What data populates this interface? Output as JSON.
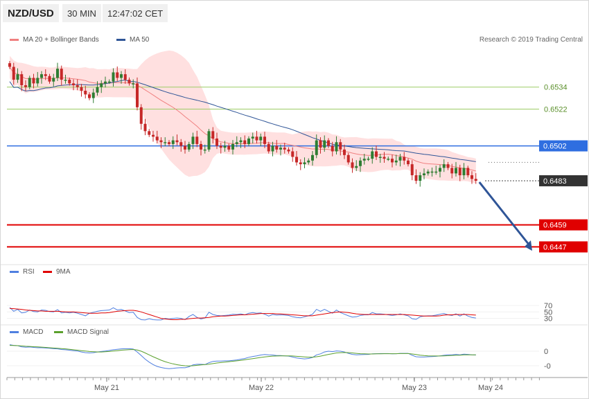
{
  "header": {
    "pair": "NZD/USD",
    "timeframe": "30 MIN",
    "time": "12:47:02 CET"
  },
  "legends": {
    "ma20": "MA 20 + Bollinger Bands",
    "ma50": "MA 50",
    "rsi": "RSI",
    "rsi_ma": "9MA",
    "macd": "MACD",
    "macd_signal": "MACD Signal"
  },
  "credit": "Research © 2019 Trading Central",
  "colors": {
    "ma20": "#f08080",
    "ma50": "#2f5597",
    "bands": "#ffe0e0",
    "bull": "#2e7d32",
    "bear": "#c62828",
    "support": "#e00000",
    "pivot": "#2f6ee0",
    "current": "#333333",
    "green_level": "#9ccc65",
    "arrow": "#2f5597"
  },
  "chart_data": [
    {
      "type": "candlestick",
      "title": "",
      "price_range": [
        6.4435,
        6.4535
      ],
      "x_ticks": [
        "May 21",
        "May 22",
        "May 23",
        "May 24"
      ],
      "levels": [
        {
          "value": 0.6534,
          "label": "0.6534",
          "style": "resistance"
        },
        {
          "value": 0.6522,
          "label": "0.6522",
          "style": "resistance"
        },
        {
          "value": 0.6502,
          "label": "0.6502",
          "style": "pivot"
        },
        {
          "value": 0.6483,
          "label": "0.6483",
          "style": "current"
        },
        {
          "value": 0.6459,
          "label": "0.6459",
          "style": "support"
        },
        {
          "value": 0.6447,
          "label": "0.6447",
          "style": "support"
        }
      ],
      "closes": [
        0.6545,
        0.6538,
        0.6541,
        0.6535,
        0.6534,
        0.6539,
        0.6536,
        0.6539,
        0.6541,
        0.654,
        0.6537,
        0.6539,
        0.6544,
        0.6538,
        0.6538,
        0.6536,
        0.6535,
        0.6534,
        0.6532,
        0.653,
        0.6528,
        0.6531,
        0.6534,
        0.6536,
        0.6537,
        0.6537,
        0.6542,
        0.6539,
        0.6541,
        0.6538,
        0.6536,
        0.6536,
        0.6523,
        0.6514,
        0.651,
        0.6508,
        0.6507,
        0.6505,
        0.6504,
        0.6504,
        0.6503,
        0.6505,
        0.6504,
        0.6502,
        0.65,
        0.6503,
        0.6507,
        0.6503,
        0.65,
        0.65,
        0.651,
        0.6506,
        0.6502,
        0.6501,
        0.6502,
        0.65,
        0.6503,
        0.6504,
        0.6505,
        0.6503,
        0.6506,
        0.6507,
        0.6505,
        0.6507,
        0.6503,
        0.6499,
        0.6502,
        0.65,
        0.6501,
        0.65,
        0.6499,
        0.6496,
        0.6493,
        0.6492,
        0.6493,
        0.6494,
        0.6497,
        0.6505,
        0.6501,
        0.6505,
        0.6502,
        0.6499,
        0.6504,
        0.65,
        0.6497,
        0.6493,
        0.649,
        0.6491,
        0.6494,
        0.6495,
        0.6495,
        0.6499,
        0.6496,
        0.6496,
        0.6495,
        0.6495,
        0.6493,
        0.6494,
        0.6496,
        0.6494,
        0.6492,
        0.6486,
        0.6483,
        0.6486,
        0.6487,
        0.6488,
        0.6488,
        0.6488,
        0.649,
        0.6492,
        0.649,
        0.6487,
        0.649,
        0.6486,
        0.649,
        0.6486,
        0.6484,
        0.6483
      ]
    },
    {
      "type": "line",
      "title": "RSI",
      "y_ticks": [
        30,
        50,
        70
      ],
      "ylim": [
        20,
        80
      ],
      "series": [
        {
          "name": "RSI",
          "values": [
            64,
            52,
            58,
            47,
            49,
            56,
            51,
            50,
            56,
            55,
            51,
            50,
            57,
            47,
            49,
            47,
            49,
            46,
            42,
            38,
            46,
            49,
            52,
            54,
            55,
            56,
            63,
            56,
            58,
            53,
            48,
            49,
            33,
            26,
            25,
            29,
            26,
            25,
            25,
            30,
            28,
            30,
            31,
            30,
            26,
            36,
            42,
            33,
            28,
            31,
            49,
            42,
            39,
            38,
            39,
            40,
            43,
            42,
            44,
            41,
            46,
            48,
            46,
            47,
            43,
            37,
            42,
            40,
            41,
            40,
            39,
            35,
            33,
            32,
            35,
            38,
            43,
            58,
            52,
            58,
            52,
            46,
            56,
            48,
            43,
            38,
            34,
            35,
            39,
            41,
            41,
            48,
            44,
            44,
            43,
            41,
            39,
            41,
            44,
            41,
            38,
            29,
            27,
            35,
            37,
            38,
            38,
            40,
            43,
            45,
            41,
            39,
            44,
            37,
            44,
            37,
            33,
            31
          ]
        },
        {
          "name": "9MA",
          "values": [
            61,
            60,
            59,
            58,
            56,
            55,
            54,
            53,
            53,
            52,
            52,
            52,
            52,
            51,
            50,
            50,
            50,
            49,
            48,
            47,
            46,
            46,
            46,
            47,
            47,
            48,
            50,
            52,
            53,
            54,
            55,
            55,
            53,
            50,
            46,
            42,
            38,
            34,
            30,
            28,
            27,
            26,
            26,
            27,
            27,
            29,
            30,
            31,
            31,
            32,
            33,
            35,
            36,
            37,
            37,
            38,
            39,
            40,
            41,
            41,
            42,
            43,
            44,
            45,
            45,
            45,
            45,
            44,
            44,
            43,
            42,
            41,
            40,
            39,
            38,
            38,
            38,
            40,
            42,
            44,
            46,
            48,
            49,
            50,
            49,
            48,
            46,
            44,
            43,
            42,
            42,
            42,
            42,
            42,
            42,
            42,
            42,
            42,
            42,
            42,
            41,
            40,
            39,
            38,
            37,
            37,
            37,
            37,
            38,
            40,
            41,
            41,
            42,
            42,
            42,
            42,
            41,
            40
          ]
        }
      ]
    },
    {
      "type": "line",
      "title": "MACD",
      "y_ticks": [
        -0.001,
        0
      ],
      "y_tick_labels": [
        "-0",
        "0"
      ],
      "series": [
        {
          "name": "MACD",
          "values": [
            0.00045,
            0.0004,
            0.00038,
            0.0003,
            0.00027,
            0.00029,
            0.00026,
            0.00024,
            0.00024,
            0.00022,
            0.0002,
            0.00017,
            0.00016,
            0.00012,
            0.0001,
            7e-05,
            4e-05,
            1e-05,
            -5e-05,
            -0.0001,
            -0.00012,
            -0.0001,
            -5e-05,
            -2e-05,
            1e-05,
            5e-05,
            0.0001,
            0.00013,
            0.00016,
            0.00017,
            0.00017,
            0.00015,
            -5e-05,
            -0.0003,
            -0.00055,
            -0.00075,
            -0.00092,
            -0.00105,
            -0.00112,
            -0.00117,
            -0.0012,
            -0.00118,
            -0.00115,
            -0.00113,
            -0.00114,
            -0.00107,
            -0.00094,
            -0.0009,
            -0.0009,
            -0.00092,
            -0.00079,
            -0.0007,
            -0.00068,
            -0.00068,
            -0.00066,
            -0.00066,
            -0.00063,
            -0.0006,
            -0.00055,
            -0.0005,
            -0.00042,
            -0.00036,
            -0.00032,
            -0.00026,
            -0.00023,
            -0.00025,
            -0.00026,
            -0.0003,
            -0.0003,
            -0.00032,
            -0.00034,
            -0.0004,
            -0.00046,
            -0.0005,
            -0.00053,
            -0.0005,
            -0.00043,
            -0.00025,
            -0.00018,
            -5e-05,
            0.0,
            -3e-05,
            2e-05,
            0.0,
            -5e-05,
            -0.00015,
            -0.00022,
            -0.00025,
            -0.00024,
            -0.00023,
            -0.00022,
            -0.00018,
            -0.00017,
            -0.00016,
            -0.00016,
            -0.00016,
            -0.00018,
            -0.00017,
            -0.00015,
            -0.00015,
            -0.00015,
            -0.00028,
            -0.00038,
            -0.0004,
            -0.0004,
            -0.00038,
            -0.00037,
            -0.00035,
            -0.00032,
            -0.00028,
            -0.00025,
            -0.00025,
            -0.00022,
            -0.00025,
            -0.0002,
            -0.00022,
            -0.00025,
            -0.00026
          ]
        },
        {
          "name": "MACD Signal",
          "values": [
            0.0004,
            0.00039,
            0.00038,
            0.00036,
            0.00034,
            0.00033,
            0.00031,
            0.0003,
            0.00028,
            0.00026,
            0.00024,
            0.00022,
            0.0002,
            0.00018,
            0.00016,
            0.00013,
            0.0001,
            7e-05,
            4e-05,
            1e-05,
            -2e-05,
            -4e-05,
            -5e-05,
            -5e-05,
            -4e-05,
            -2e-05,
            1e-05,
            4e-05,
            7e-05,
            9e-05,
            0.00011,
            0.00012,
            8e-05,
            0.0,
            -0.00012,
            -0.00025,
            -0.00038,
            -0.0005,
            -0.00062,
            -0.00072,
            -0.0008,
            -0.00087,
            -0.00093,
            -0.00097,
            -0.001,
            -0.00101,
            -0.001,
            -0.00097,
            -0.00094,
            -0.00092,
            -0.00089,
            -0.00085,
            -0.00081,
            -0.00078,
            -0.00075,
            -0.00072,
            -0.00069,
            -0.00066,
            -0.00063,
            -0.00059,
            -0.00055,
            -0.00051,
            -0.00047,
            -0.00043,
            -0.00039,
            -0.00036,
            -0.00034,
            -0.00033,
            -0.00032,
            -0.00032,
            -0.00032,
            -0.00033,
            -0.00035,
            -0.00037,
            -0.00039,
            -0.00041,
            -0.00041,
            -0.00038,
            -0.00034,
            -0.00028,
            -0.00022,
            -0.00017,
            -0.00012,
            -0.0001,
            -9e-05,
            -0.0001,
            -0.00012,
            -0.00015,
            -0.00017,
            -0.00018,
            -0.00019,
            -0.00019,
            -0.00018,
            -0.00018,
            -0.00017,
            -0.00017,
            -0.00017,
            -0.00017,
            -0.00016,
            -0.00016,
            -0.00016,
            -0.00019,
            -0.00023,
            -0.00027,
            -0.0003,
            -0.00032,
            -0.00033,
            -0.00033,
            -0.00033,
            -0.00032,
            -0.00031,
            -0.00029,
            -0.00028,
            -0.00027,
            -0.00025,
            -0.00025,
            -0.00025,
            -0.00025
          ]
        }
      ]
    }
  ]
}
